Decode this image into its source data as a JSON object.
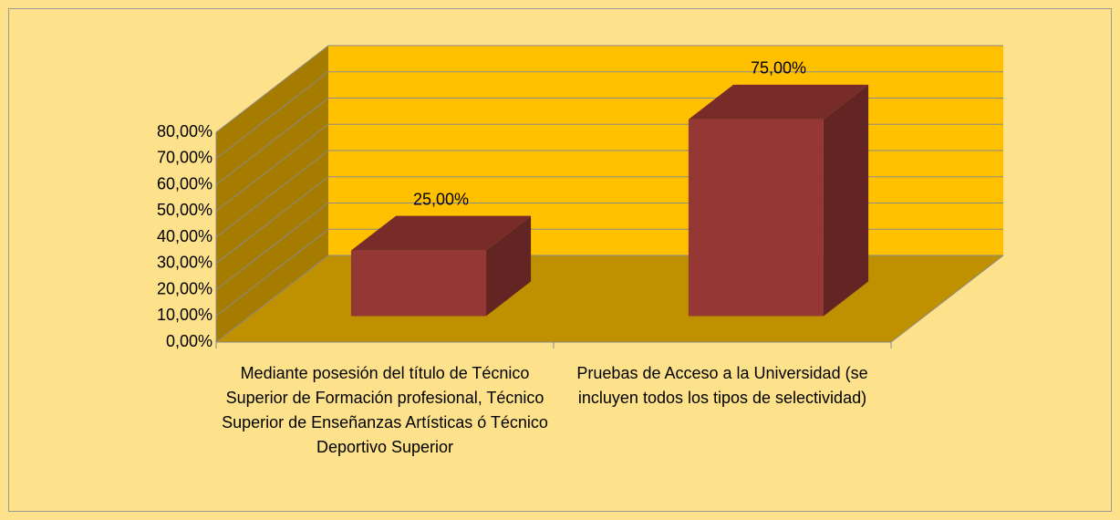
{
  "chart_data": {
    "type": "bar3d",
    "categories": [
      "Mediante posesión del título de Técnico Superior de Formación profesional, Técnico Superior de Enseñanzas Artísticas ó Técnico Deportivo Superior",
      "Pruebas de Acceso a la Universidad (se incluyen todos los tipos de selectividad)"
    ],
    "values": [
      25,
      75
    ],
    "value_labels": [
      "25,00%",
      "75,00%"
    ],
    "color": "#953735",
    "ylim": [
      0,
      80
    ],
    "yticks": [
      {
        "value": 0,
        "label": "0,00%"
      },
      {
        "value": 10,
        "label": "10,00%"
      },
      {
        "value": 20,
        "label": "20,00%"
      },
      {
        "value": 30,
        "label": "30,00%"
      },
      {
        "value": 40,
        "label": "40,00%"
      },
      {
        "value": 50,
        "label": "50,00%"
      },
      {
        "value": 60,
        "label": "60,00%"
      },
      {
        "value": 70,
        "label": "70,00%"
      },
      {
        "value": 80,
        "label": "80,00%"
      }
    ],
    "grid": true
  }
}
